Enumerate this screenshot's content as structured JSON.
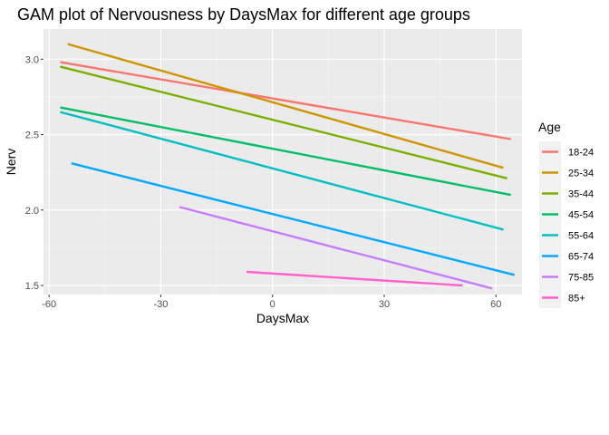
{
  "chart_data": {
    "type": "line",
    "title": "GAM plot of Nervousness by DaysMax for different age groups",
    "xlabel": "DaysMax",
    "ylabel": "Nerv",
    "xlim": [
      -61.5,
      67
    ],
    "ylim": [
      1.44,
      3.2
    ],
    "x_ticks": [
      -60,
      -30,
      0,
      30,
      60
    ],
    "y_ticks": [
      1.5,
      2.0,
      2.5,
      3.0
    ],
    "x_tick_labels": [
      "-60",
      "-30",
      "0",
      "30",
      "60"
    ],
    "y_tick_labels": [
      "1.5",
      "2.0",
      "2.5",
      "3.0"
    ],
    "grid": true,
    "legend_title": "Age",
    "legend_position": "right",
    "series": [
      {
        "name": "18-24",
        "color": "#F8766D",
        "x": [
          -57,
          64
        ],
        "y": [
          2.98,
          2.47
        ]
      },
      {
        "name": "25-34",
        "color": "#CD9600",
        "x": [
          -55,
          62
        ],
        "y": [
          3.1,
          2.28
        ]
      },
      {
        "name": "35-44",
        "color": "#7CAE00",
        "x": [
          -57,
          63
        ],
        "y": [
          2.95,
          2.21
        ]
      },
      {
        "name": "45-54",
        "color": "#00BE67",
        "x": [
          -57,
          64
        ],
        "y": [
          2.68,
          2.1
        ]
      },
      {
        "name": "55-64",
        "color": "#00BFC4",
        "x": [
          -57,
          62
        ],
        "y": [
          2.65,
          1.87
        ]
      },
      {
        "name": "65-74",
        "color": "#00A9FF",
        "x": [
          -54,
          65
        ],
        "y": [
          2.31,
          1.57
        ]
      },
      {
        "name": "75-85",
        "color": "#C77CFF",
        "x": [
          -25,
          59
        ],
        "y": [
          2.02,
          1.48
        ]
      },
      {
        "name": "85+",
        "color": "#FF61CC",
        "x": [
          -7,
          51
        ],
        "y": [
          1.59,
          1.5
        ]
      }
    ]
  }
}
